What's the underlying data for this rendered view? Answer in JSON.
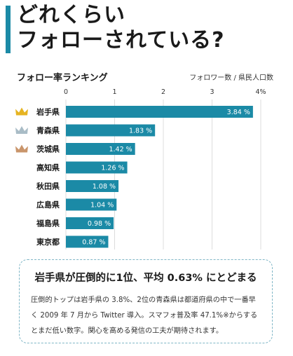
{
  "title_line1": "どれくらい",
  "title_line2": "フォローされている?",
  "section_title": "フォロー率ランキング",
  "unit_note": "フォロワー数 / 県民人口数",
  "chart_data": {
    "type": "bar",
    "orientation": "horizontal",
    "title": "フォロー率ランキング",
    "categories": [
      "岩手県",
      "青森県",
      "茨城県",
      "高知県",
      "秋田県",
      "広島県",
      "福島県",
      "東京都"
    ],
    "values": [
      3.84,
      1.83,
      1.42,
      1.26,
      1.08,
      1.04,
      0.98,
      0.87
    ],
    "value_labels": [
      "3.84 %",
      "1.83 %",
      "1.42 %",
      "1.26 %",
      "1.08 %",
      "1.04 %",
      "0.98 %",
      "0.87 %"
    ],
    "xlim": [
      0,
      4
    ],
    "xticks": [
      "0",
      "1",
      "2",
      "3",
      "4%"
    ],
    "grid": true,
    "bar_color": "#1b8aa6",
    "crowns": [
      {
        "rank": 1,
        "color": "#e6b422"
      },
      {
        "rank": 2,
        "color": "#a9bcc6"
      },
      {
        "rank": 3,
        "color": "#c9956b"
      }
    ]
  },
  "callout": {
    "heading": "岩手県が圧倒的に1位、平均 0.63% にとどまる",
    "body": "圧倒的トップは岩手県の 3.8%、2位の青森県は都道府県の中で一番早く 2009 年 7 月から Twitter 導入。スマフォ普及率 47.1%※からするとまだ低い数字。関心を高める発信の工夫が期待されます。"
  }
}
